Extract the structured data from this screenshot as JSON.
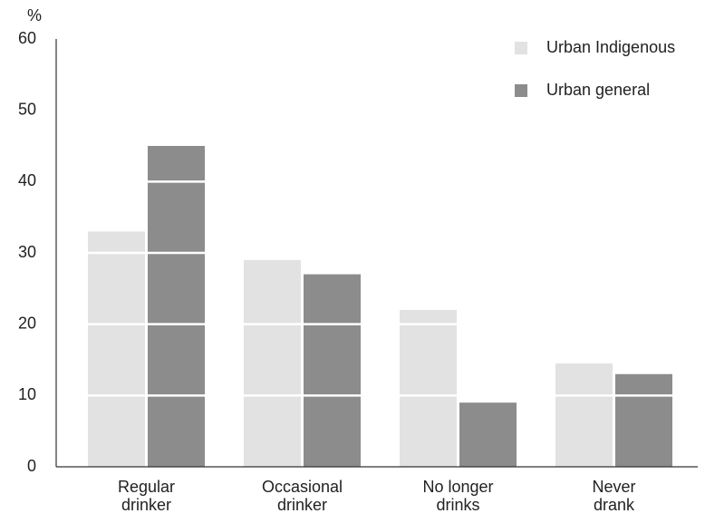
{
  "chart_data": {
    "type": "bar",
    "y_label": "%",
    "categories": [
      "Regular drinker",
      "Occasional drinker",
      "No longer drinks",
      "Never drank"
    ],
    "series": [
      {
        "name": "Urban Indigenous",
        "color": "#e2e2e2",
        "values": [
          33,
          29,
          22,
          14.5
        ]
      },
      {
        "name": "Urban general",
        "color": "#8c8c8c",
        "values": [
          45,
          27,
          9,
          13
        ]
      }
    ],
    "ylim": [
      0,
      60
    ],
    "yticks": [
      0,
      10,
      20,
      30,
      40,
      50,
      60
    ],
    "grid": true,
    "grid_color": "#ffffff",
    "legend": "top-right"
  }
}
